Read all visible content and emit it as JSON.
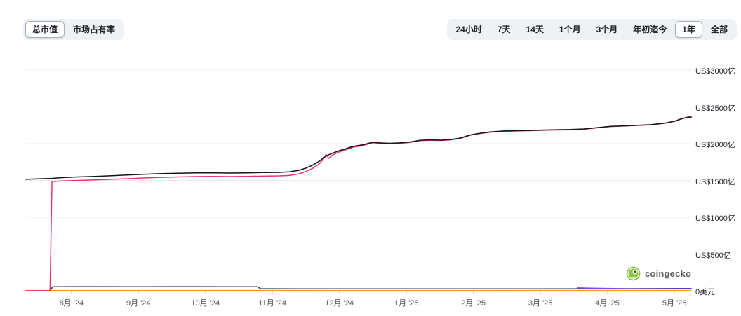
{
  "toolbar": {
    "metric_tabs": [
      {
        "label": "总市值",
        "active": true
      },
      {
        "label": "市场占有率",
        "active": false
      }
    ],
    "range_buttons": [
      {
        "label": "24小时",
        "active": false
      },
      {
        "label": "7天",
        "active": false
      },
      {
        "label": "14天",
        "active": false
      },
      {
        "label": "1个月",
        "active": false
      },
      {
        "label": "3个月",
        "active": false
      },
      {
        "label": "年初迄今",
        "active": false
      },
      {
        "label": "1年",
        "active": true
      },
      {
        "label": "全部",
        "active": false
      }
    ]
  },
  "watermark": {
    "text": "coingecko",
    "logo_color": "#8bc53f"
  },
  "chart_data": {
    "type": "line",
    "title": "",
    "xlabel": "",
    "ylabel": "",
    "grid": true,
    "legend": "none",
    "xlim": [
      7.3,
      17.25
    ],
    "ylim": [
      0,
      3000
    ],
    "y_unit": "US$亿",
    "y_ticks": [
      {
        "value": 3000,
        "label": "US$3000亿"
      },
      {
        "value": 2500,
        "label": "US$2500亿"
      },
      {
        "value": 2000,
        "label": "US$2000亿"
      },
      {
        "value": 1500,
        "label": "US$1500亿"
      },
      {
        "value": 1000,
        "label": "US$1000亿"
      },
      {
        "value": 500,
        "label": "US$500亿"
      },
      {
        "value": 0,
        "label": "0美元"
      }
    ],
    "x_ticks": [
      {
        "value": 8,
        "label": "8月 '24"
      },
      {
        "value": 9,
        "label": "9月 '24"
      },
      {
        "value": 10,
        "label": "10月 '24"
      },
      {
        "value": 11,
        "label": "11月 '24"
      },
      {
        "value": 12,
        "label": "12月 '24"
      },
      {
        "value": 13,
        "label": "1月 '25"
      },
      {
        "value": 14,
        "label": "2月 '25"
      },
      {
        "value": 15,
        "label": "3月 '25"
      },
      {
        "value": 16,
        "label": "4月 '25"
      },
      {
        "value": 17,
        "label": "5月 '25"
      }
    ],
    "series": [
      {
        "name": "orange",
        "color": "#f5a623",
        "width": 1.4,
        "points": [
          [
            7.32,
            4
          ],
          [
            9.0,
            4
          ],
          [
            11.0,
            5
          ],
          [
            13.0,
            4
          ],
          [
            15.0,
            5
          ],
          [
            17.25,
            5
          ]
        ]
      },
      {
        "name": "navy",
        "color": "#2b338f",
        "width": 1.5,
        "points": [
          [
            7.68,
            2
          ],
          [
            7.72,
            54
          ],
          [
            8.2,
            56
          ],
          [
            9.0,
            55
          ],
          [
            9.8,
            56
          ],
          [
            10.4,
            55
          ],
          [
            10.78,
            54
          ],
          [
            10.82,
            28
          ],
          [
            11.4,
            26
          ],
          [
            12.2,
            26
          ],
          [
            13.0,
            26
          ],
          [
            14.0,
            26
          ],
          [
            15.0,
            27
          ],
          [
            16.0,
            28
          ],
          [
            16.6,
            30
          ],
          [
            17.0,
            31
          ],
          [
            17.25,
            31
          ]
        ]
      },
      {
        "name": "purple",
        "color": "#7d4cdb",
        "width": 1.5,
        "points": [
          [
            15.55,
            40
          ],
          [
            15.75,
            36
          ],
          [
            16.0,
            32
          ],
          [
            16.3,
            28
          ],
          [
            16.6,
            26
          ],
          [
            17.0,
            26
          ],
          [
            17.25,
            27
          ]
        ]
      },
      {
        "name": "magenta",
        "color": "#e6336f",
        "width": 1.5,
        "points": [
          [
            7.32,
            1
          ],
          [
            7.68,
            1
          ],
          [
            7.71,
            1486
          ],
          [
            7.9,
            1494
          ],
          [
            8.1,
            1500
          ],
          [
            8.35,
            1507
          ],
          [
            8.6,
            1515
          ],
          [
            8.85,
            1524
          ],
          [
            9.1,
            1534
          ],
          [
            9.35,
            1542
          ],
          [
            9.6,
            1548
          ],
          [
            9.85,
            1552
          ],
          [
            10.1,
            1555
          ],
          [
            10.35,
            1552
          ],
          [
            10.6,
            1555
          ],
          [
            10.85,
            1558
          ],
          [
            11.1,
            1562
          ],
          [
            11.25,
            1568
          ],
          [
            11.4,
            1590
          ],
          [
            11.5,
            1622
          ],
          [
            11.6,
            1665
          ],
          [
            11.7,
            1725
          ],
          [
            11.76,
            1790
          ],
          [
            11.8,
            1855
          ],
          [
            11.84,
            1800
          ],
          [
            11.9,
            1848
          ],
          [
            12.0,
            1888
          ],
          [
            12.1,
            1918
          ],
          [
            12.2,
            1950
          ],
          [
            12.35,
            1975
          ],
          [
            12.5,
            2012
          ],
          [
            12.6,
            2003
          ],
          [
            12.75,
            1998
          ],
          [
            12.9,
            2004
          ],
          [
            13.05,
            2016
          ],
          [
            13.2,
            2040
          ],
          [
            13.35,
            2047
          ],
          [
            13.5,
            2043
          ],
          [
            13.65,
            2050
          ],
          [
            13.8,
            2070
          ],
          [
            13.95,
            2114
          ],
          [
            14.1,
            2138
          ],
          [
            14.25,
            2156
          ],
          [
            14.45,
            2168
          ],
          [
            14.65,
            2172
          ],
          [
            14.85,
            2176
          ],
          [
            15.05,
            2182
          ],
          [
            15.25,
            2186
          ],
          [
            15.45,
            2188
          ],
          [
            15.65,
            2196
          ],
          [
            15.85,
            2215
          ],
          [
            16.05,
            2232
          ],
          [
            16.25,
            2240
          ],
          [
            16.45,
            2248
          ],
          [
            16.65,
            2256
          ],
          [
            16.85,
            2276
          ],
          [
            17.0,
            2304
          ],
          [
            17.1,
            2338
          ],
          [
            17.2,
            2362
          ],
          [
            17.25,
            2368
          ]
        ]
      },
      {
        "name": "black",
        "color": "#141419",
        "width": 1.5,
        "points": [
          [
            7.32,
            1515
          ],
          [
            7.5,
            1522
          ],
          [
            7.7,
            1528
          ],
          [
            7.9,
            1540
          ],
          [
            8.1,
            1548
          ],
          [
            8.35,
            1555
          ],
          [
            8.6,
            1565
          ],
          [
            8.85,
            1575
          ],
          [
            9.1,
            1585
          ],
          [
            9.35,
            1592
          ],
          [
            9.6,
            1598
          ],
          [
            9.85,
            1602
          ],
          [
            10.1,
            1604
          ],
          [
            10.35,
            1600
          ],
          [
            10.6,
            1603
          ],
          [
            10.85,
            1607
          ],
          [
            11.1,
            1610
          ],
          [
            11.25,
            1616
          ],
          [
            11.4,
            1638
          ],
          [
            11.5,
            1668
          ],
          [
            11.6,
            1708
          ],
          [
            11.7,
            1762
          ],
          [
            11.8,
            1832
          ],
          [
            11.9,
            1872
          ],
          [
            12.0,
            1905
          ],
          [
            12.1,
            1932
          ],
          [
            12.2,
            1962
          ],
          [
            12.35,
            1985
          ],
          [
            12.5,
            2020
          ],
          [
            12.6,
            2010
          ],
          [
            12.75,
            2005
          ],
          [
            12.9,
            2010
          ],
          [
            13.05,
            2022
          ],
          [
            13.2,
            2045
          ],
          [
            13.35,
            2052
          ],
          [
            13.5,
            2048
          ],
          [
            13.65,
            2055
          ],
          [
            13.8,
            2075
          ],
          [
            13.95,
            2118
          ],
          [
            14.1,
            2142
          ],
          [
            14.25,
            2160
          ],
          [
            14.45,
            2172
          ],
          [
            14.65,
            2176
          ],
          [
            14.85,
            2180
          ],
          [
            15.05,
            2186
          ],
          [
            15.25,
            2190
          ],
          [
            15.45,
            2192
          ],
          [
            15.65,
            2200
          ],
          [
            15.85,
            2218
          ],
          [
            16.05,
            2235
          ],
          [
            16.25,
            2242
          ],
          [
            16.45,
            2250
          ],
          [
            16.65,
            2258
          ],
          [
            16.85,
            2278
          ],
          [
            17.0,
            2305
          ],
          [
            17.1,
            2335
          ],
          [
            17.2,
            2358
          ],
          [
            17.25,
            2360
          ]
        ]
      }
    ]
  }
}
